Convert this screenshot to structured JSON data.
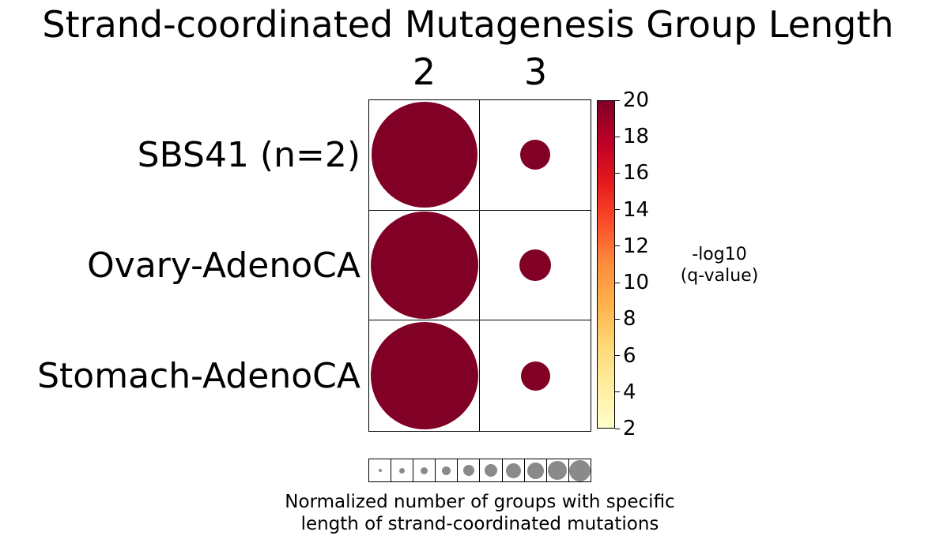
{
  "title": "Strand-coordinated Mutagenesis Group Length",
  "matrix": {
    "columns": [
      "2",
      "3"
    ],
    "rows": [
      {
        "label": "SBS41 (n=2)",
        "bubbles": [
          {
            "diameter": 134,
            "color": "#800026"
          },
          {
            "diameter": 38,
            "color": "#800026"
          }
        ]
      },
      {
        "label": "Ovary-AdenoCA",
        "bubbles": [
          {
            "diameter": 136,
            "color": "#800026"
          },
          {
            "diameter": 40,
            "color": "#800026"
          }
        ]
      },
      {
        "label": "Stomach-AdenoCA",
        "bubbles": [
          {
            "diameter": 136,
            "color": "#800026"
          },
          {
            "diameter": 37,
            "color": "#800026"
          }
        ]
      }
    ]
  },
  "colorbar": {
    "label_line1": "-log10",
    "label_line2": "(q-value)",
    "min": 2,
    "max": 20,
    "ticks": [
      20,
      18,
      16,
      14,
      12,
      10,
      8,
      6,
      4,
      2
    ],
    "colormap_name": "YlOrRd",
    "gradient_colors": [
      "#ffffcc",
      "#ffeda0",
      "#fed976",
      "#feb24c",
      "#fd8d3c",
      "#fc4e2a",
      "#e31a1c",
      "#bd0026",
      "#800026"
    ]
  },
  "size_legend": {
    "circle_color": "#8a8a8a",
    "diameters": [
      4,
      7,
      9,
      11,
      14,
      16,
      19,
      21,
      24,
      27
    ],
    "caption_line1": "Normalized number of groups with specific",
    "caption_line2": "length of strand-coordinated mutations"
  },
  "chart_data": {
    "type": "scatter",
    "subtype": "bubble-matrix",
    "title": "Strand-coordinated Mutagenesis Group Length",
    "x_categories": [
      "2",
      "3"
    ],
    "y_categories": [
      "SBS41 (n=2)",
      "Ovary-AdenoCA",
      "Stomach-AdenoCA"
    ],
    "series": [
      {
        "row": "SBS41 (n=2)",
        "points": [
          {
            "group_length": "2",
            "normalized_group_count": 0.96,
            "neg_log10_qvalue": 20
          },
          {
            "group_length": "3",
            "normalized_group_count": 0.27,
            "neg_log10_qvalue": 20
          }
        ]
      },
      {
        "row": "Ovary-AdenoCA",
        "points": [
          {
            "group_length": "2",
            "normalized_group_count": 0.97,
            "neg_log10_qvalue": 20
          },
          {
            "group_length": "3",
            "normalized_group_count": 0.29,
            "neg_log10_qvalue": 20
          }
        ]
      },
      {
        "row": "Stomach-AdenoCA",
        "points": [
          {
            "group_length": "2",
            "normalized_group_count": 0.97,
            "neg_log10_qvalue": 20
          },
          {
            "group_length": "3",
            "normalized_group_count": 0.26,
            "neg_log10_qvalue": 20
          }
        ]
      }
    ],
    "color_scale": {
      "label": "-log10 (q-value)",
      "range": [
        2,
        20
      ],
      "colormap": "YlOrRd",
      "legend_position": "right"
    },
    "size_scale": {
      "label": "Normalized number of groups with specific length of strand-coordinated mutations",
      "steps": 10,
      "legend_position": "bottom"
    },
    "grid": true,
    "legend_position": "right"
  }
}
